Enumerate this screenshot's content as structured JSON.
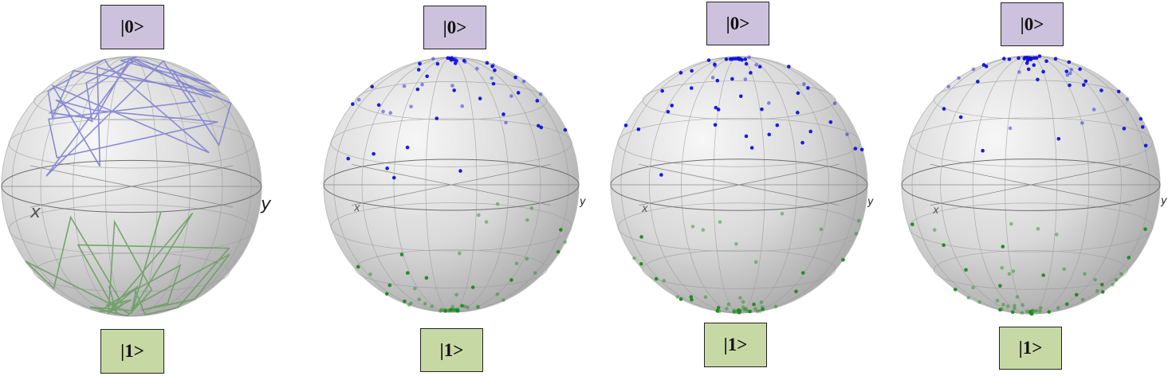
{
  "colors": {
    "state_top_box": "#cdc2dd",
    "state_bottom_box": "#c6d9a4",
    "upper_points": "#1010e0",
    "lower_points": "#1a8a1a",
    "upper_lines": "#8080d0",
    "lower_lines": "#6a9e62",
    "sphere_fill": "#d8d8d8"
  },
  "spheres": [
    {
      "id": "sphere-1",
      "mode": "lines",
      "top_label": "|0>",
      "bottom_label": "|1>",
      "axis_x_label": "x",
      "axis_y_label": "y"
    },
    {
      "id": "sphere-2",
      "mode": "points",
      "top_label": "|0>",
      "bottom_label": "|1>",
      "axis_x_label": "x",
      "axis_y_label": "y"
    },
    {
      "id": "sphere-3",
      "mode": "points",
      "top_label": "|0>",
      "bottom_label": "|1>",
      "axis_x_label": "x",
      "axis_y_label": "y"
    },
    {
      "id": "sphere-4",
      "mode": "points",
      "top_label": "|0>",
      "bottom_label": "|1>",
      "axis_x_label": "x",
      "axis_y_label": "y"
    }
  ]
}
